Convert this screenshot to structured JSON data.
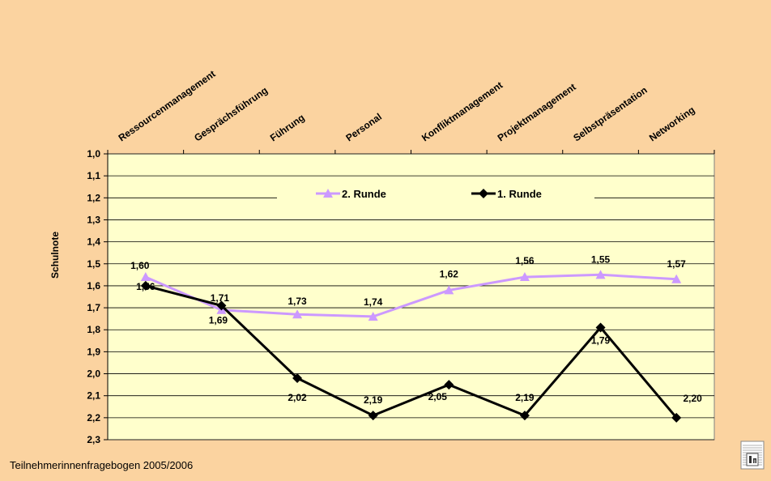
{
  "footer_text": "Teilnehmerinnenfragebogen 2005/2006",
  "colors": {
    "background": "#fbd3a0",
    "plot_area": "#ffffcc",
    "series_2": "#cc99ff",
    "series_1": "#000000"
  },
  "chart_data": {
    "type": "line",
    "title": "",
    "xlabel": "",
    "ylabel": "Schulnote",
    "ylim": [
      1.0,
      2.3
    ],
    "y_inverted": true,
    "x_axis_position": "top",
    "grid": true,
    "legend_position": "top-center",
    "yticks": [
      "1,0",
      "1,1",
      "1,2",
      "1,3",
      "1,4",
      "1,5",
      "1,6",
      "1,7",
      "1,8",
      "1,9",
      "2,0",
      "2,1",
      "2,2",
      "2,3"
    ],
    "categories": [
      "Ressourcenmanagement",
      "Gesprächsführung",
      "Führung",
      "Personal",
      "Konfliktmanagement",
      "Projektmanagement",
      "Selbstpräsentation",
      "Networking"
    ],
    "series": [
      {
        "name": "2. Runde",
        "marker": "triangle",
        "values": [
          1.56,
          1.71,
          1.73,
          1.74,
          1.62,
          1.56,
          1.55,
          1.57
        ],
        "labels": [
          "1,56",
          "1,71",
          "1,73",
          "1,74",
          "1,62",
          "1,56",
          "1,55",
          "1,57"
        ]
      },
      {
        "name": "1. Runde",
        "marker": "diamond",
        "values": [
          1.6,
          1.69,
          2.02,
          2.19,
          2.05,
          2.19,
          1.79,
          2.2
        ],
        "labels": [
          "1,60",
          "1,69",
          "2,02",
          "2,19",
          "2,05",
          "2,19",
          "1,79",
          "2,20"
        ]
      }
    ]
  }
}
